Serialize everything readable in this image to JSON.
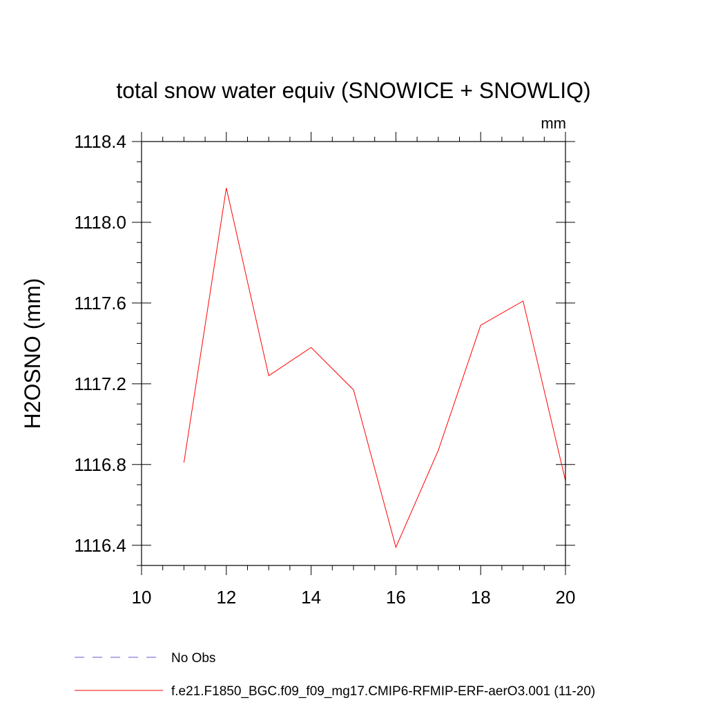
{
  "chart_data": {
    "type": "line",
    "title": "total snow water equiv (SNOWICE + SNOWLIQ)",
    "units_label": "mm",
    "ylabel": "H2OSNO  (mm)",
    "xlabel": "",
    "xlim": [
      10,
      20
    ],
    "ylim": [
      1116.3,
      1118.4
    ],
    "x_ticks": [
      10,
      12,
      14,
      16,
      18,
      20
    ],
    "x_tick_labels": [
      "10",
      "12",
      "14",
      "16",
      "18",
      "20"
    ],
    "y_ticks": [
      1116.4,
      1116.8,
      1117.2,
      1117.6,
      1118.0,
      1118.4
    ],
    "y_tick_labels": [
      "1116.4",
      "1116.8",
      "1117.2",
      "1117.6",
      "1118.0",
      "1118.4"
    ],
    "x_minor_step": 0.5,
    "y_minor_step": 0.1,
    "grid": false,
    "legend_position": "bottom",
    "series": [
      {
        "name": "f.e21.F1850_BGC.f09_f09_mg17.CMIP6-RFMIP-ERF-aerO3.001 (11-20)",
        "color": "#ff0000",
        "dash": "solid",
        "x": [
          11,
          12,
          13,
          14,
          15,
          16,
          17,
          18,
          19,
          20
        ],
        "y": [
          1116.81,
          1118.17,
          1117.24,
          1117.38,
          1117.17,
          1116.39,
          1116.87,
          1117.49,
          1117.61,
          1116.72
        ]
      }
    ],
    "legend": [
      {
        "label": "No Obs",
        "color": "#6a5acd",
        "dash": "dashed"
      },
      {
        "label": "f.e21.F1850_BGC.f09_f09_mg17.CMIP6-RFMIP-ERF-aerO3.001 (11-20)",
        "color": "#ff0000",
        "dash": "solid"
      }
    ]
  }
}
